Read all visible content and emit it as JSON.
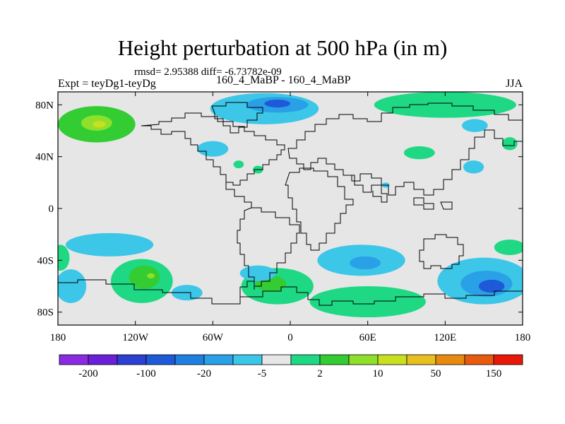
{
  "chart_data": {
    "type": "heatmap",
    "title": "Height perturbation at 500 hPa (in m)",
    "stats": "rmsd= 2.95388 diff= -6.73782e-09",
    "left_label": "Expt = teyDg1-teyDg",
    "center_label": "160_4_MaBP - 160_4_MaBP",
    "right_label": "JJA",
    "x_range": [
      -180,
      180
    ],
    "y_range": [
      -90,
      90
    ],
    "x_ticks": [
      {
        "value": -180,
        "label": "180"
      },
      {
        "value": -120,
        "label": "120W"
      },
      {
        "value": -60,
        "label": "60W"
      },
      {
        "value": 0,
        "label": "0"
      },
      {
        "value": 60,
        "label": "60E"
      },
      {
        "value": 120,
        "label": "120E"
      },
      {
        "value": 180,
        "label": "180"
      }
    ],
    "y_ticks": [
      {
        "value": 80,
        "label": "80N"
      },
      {
        "value": 40,
        "label": "40N"
      },
      {
        "value": 0,
        "label": "0"
      },
      {
        "value": -40,
        "label": "40S"
      },
      {
        "value": -80,
        "label": "80S"
      }
    ],
    "colorbar": {
      "colors": [
        "#8a2be2",
        "#6a1fd8",
        "#2b3fd1",
        "#1e5ad8",
        "#1f7fe0",
        "#2aa0e6",
        "#3cc6e8",
        "#e6e6e6",
        "#1ed884",
        "#33cc33",
        "#8ee02a",
        "#c8e020",
        "#e8c020",
        "#e88a10",
        "#e85a10",
        "#e81808"
      ],
      "labels": [
        {
          "index": 1,
          "label": "-200"
        },
        {
          "index": 3,
          "label": "-100"
        },
        {
          "index": 5,
          "label": "-20"
        },
        {
          "index": 7,
          "label": "-5"
        },
        {
          "index": 9,
          "label": "2"
        },
        {
          "index": 11,
          "label": "10"
        },
        {
          "index": 13,
          "label": "50"
        },
        {
          "index": 15,
          "label": "150"
        }
      ]
    },
    "features": [
      {
        "name": "n-pacific-anomaly",
        "lon": -150,
        "lat": 65,
        "rx": 30,
        "ry": 14,
        "level": 2
      },
      {
        "name": "n-pacific-core",
        "lon": -150,
        "lat": 66,
        "rx": 12,
        "ry": 6,
        "level": 3
      },
      {
        "name": "n-pacific-peak",
        "lon": -148,
        "lat": 65,
        "rx": 5,
        "ry": 2.5,
        "level": 4
      },
      {
        "name": "arctic-atlantic-low",
        "lon": -20,
        "lat": 77,
        "rx": 42,
        "ry": 12,
        "level": -1
      },
      {
        "name": "arctic-atlantic-core",
        "lon": -10,
        "lat": 80,
        "rx": 24,
        "ry": 6,
        "level": -2
      },
      {
        "name": "arctic-atlantic-deep",
        "lon": -10,
        "lat": 81,
        "rx": 10,
        "ry": 3,
        "level": -3
      },
      {
        "name": "siberia-arctic-high",
        "lon": 120,
        "lat": 80,
        "rx": 55,
        "ry": 10,
        "level": 1
      },
      {
        "name": "ne-asia-low",
        "lon": 143,
        "lat": 64,
        "rx": 10,
        "ry": 5,
        "level": -1
      },
      {
        "name": "pacific-nw-low",
        "lon": -60,
        "lat": 46,
        "rx": 12,
        "ry": 6,
        "level": -1
      },
      {
        "name": "west-n-atl-high",
        "lon": -40,
        "lat": 34,
        "rx": 4,
        "ry": 3,
        "level": 1
      },
      {
        "name": "mid-atl-high",
        "lon": -25,
        "lat": 30,
        "rx": 4,
        "ry": 3,
        "level": 1
      },
      {
        "name": "eurasia-high",
        "lon": 100,
        "lat": 43,
        "rx": 12,
        "ry": 5,
        "level": 1
      },
      {
        "name": "east-asia-low",
        "lon": 142,
        "lat": 32,
        "rx": 8,
        "ry": 5,
        "level": -1
      },
      {
        "name": "china-sea-low",
        "lon": 74,
        "lat": 18,
        "rx": 3,
        "ry": 2,
        "level": -1
      },
      {
        "name": "far-ne-asia-high",
        "lon": 170,
        "lat": 50,
        "rx": 6,
        "ry": 5,
        "level": 1
      },
      {
        "name": "s-pacific-low-band",
        "lon": -140,
        "lat": -28,
        "rx": 34,
        "ry": 9,
        "level": -1
      },
      {
        "name": "s-pacific-high",
        "lon": -115,
        "lat": -56,
        "rx": 24,
        "ry": 17,
        "level": 1
      },
      {
        "name": "s-pacific-high-core",
        "lon": -113,
        "lat": -53,
        "rx": 12,
        "ry": 9,
        "level": 2
      },
      {
        "name": "s-pacific-high-peak",
        "lon": -108,
        "lat": -52,
        "rx": 3,
        "ry": 2,
        "level": 3
      },
      {
        "name": "s-pacific-far-high",
        "lon": -178,
        "lat": -38,
        "rx": 7,
        "ry": 10,
        "level": 1
      },
      {
        "name": "w-s-pacific-low",
        "lon": -170,
        "lat": -60,
        "rx": 12,
        "ry": 13,
        "level": -1
      },
      {
        "name": "se-pacific-low",
        "lon": -80,
        "lat": -65,
        "rx": 12,
        "ry": 6,
        "level": -1
      },
      {
        "name": "s-atlantic-high",
        "lon": -10,
        "lat": -60,
        "rx": 28,
        "ry": 14,
        "level": 1
      },
      {
        "name": "s-atlantic-core",
        "lon": -15,
        "lat": -58,
        "rx": 12,
        "ry": 6,
        "level": 2
      },
      {
        "name": "s-atlantic-low",
        "lon": -25,
        "lat": -50,
        "rx": 14,
        "ry": 6,
        "level": -1
      },
      {
        "name": "s-indian-low",
        "lon": 55,
        "lat": -40,
        "rx": 34,
        "ry": 12,
        "level": -1
      },
      {
        "name": "s-indian-low-core",
        "lon": 58,
        "lat": -42,
        "rx": 12,
        "ry": 5,
        "level": -2
      },
      {
        "name": "s-indian-south-high",
        "lon": 60,
        "lat": -72,
        "rx": 45,
        "ry": 12,
        "level": 1
      },
      {
        "name": "s-ocean-low",
        "lon": 150,
        "lat": -56,
        "rx": 36,
        "ry": 18,
        "level": -1
      },
      {
        "name": "s-ocean-low-core",
        "lon": 152,
        "lat": -58,
        "rx": 20,
        "ry": 10,
        "level": -2
      },
      {
        "name": "s-ocean-low-deep",
        "lon": 156,
        "lat": -60,
        "rx": 10,
        "ry": 5,
        "level": -3
      },
      {
        "name": "s-pacific-east-high",
        "lon": 170,
        "lat": -30,
        "rx": 12,
        "ry": 6,
        "level": 1
      }
    ]
  }
}
